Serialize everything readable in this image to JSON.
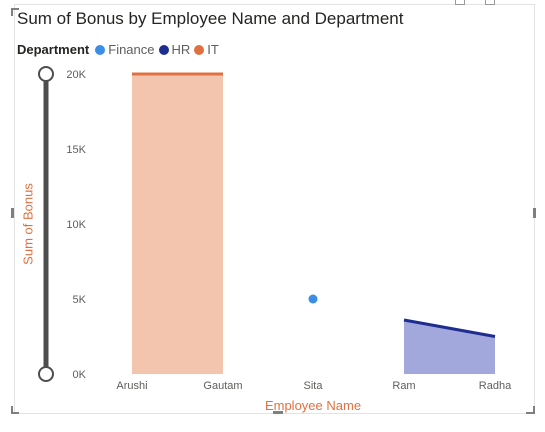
{
  "visual": {
    "title": "Sum of Bonus by Employee Name and Department",
    "legend_title": "Department"
  },
  "colors": {
    "Finance": "#3a8ee6",
    "HR": "#1f2d8f",
    "IT": "#e07040",
    "it_fill": "#f4c5ae",
    "hr_fill": "#a3a8dc",
    "axis_label": "#e07040",
    "slider": "#4d4d4d"
  },
  "chart_data": {
    "type": "area",
    "title": "Sum of Bonus by Employee Name and Department",
    "xlabel": "Employee Name",
    "ylabel": "Sum of Bonus",
    "categories": [
      "Arushi",
      "Gautam",
      "Sita",
      "Ram",
      "Radha"
    ],
    "ylim": [
      0,
      20000
    ],
    "yticks": [
      {
        "value": 0,
        "label": "0K"
      },
      {
        "value": 5000,
        "label": "5K"
      },
      {
        "value": 10000,
        "label": "10K"
      },
      {
        "value": 15000,
        "label": "15K"
      },
      {
        "value": 20000,
        "label": "20K"
      }
    ],
    "legend_position": "top-left",
    "grid": false,
    "series": [
      {
        "name": "Finance",
        "values": [
          null,
          null,
          5000,
          null,
          null
        ]
      },
      {
        "name": "HR",
        "values": [
          null,
          null,
          null,
          3600,
          2500
        ]
      },
      {
        "name": "IT",
        "values": [
          20000,
          20000,
          null,
          null,
          null
        ]
      }
    ]
  }
}
